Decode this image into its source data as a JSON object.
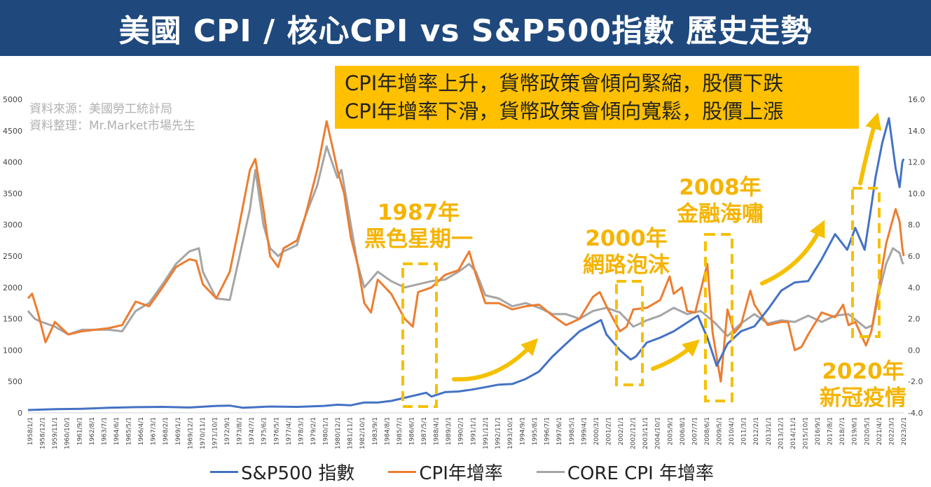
{
  "header": {
    "title": "美國 CPI / 核心CPI vs S&P500指數 歷史走勢"
  },
  "note": {
    "lines": [
      "CPI年增率上升，貨幣政策會傾向緊縮，股價下跌",
      "CPI年增率下滑，貨幣政策會傾向寬鬆，股價上漲"
    ]
  },
  "source": {
    "line1": "資料來源：美國勞工統計局",
    "line2": "資料整理：Mr.Market市場先生"
  },
  "annotations": [
    {
      "id": "a1987",
      "lines": [
        "1987年",
        "黑色星期一"
      ]
    },
    {
      "id": "a2000",
      "lines": [
        "2000年",
        "網路泡沫"
      ]
    },
    {
      "id": "a2008",
      "lines": [
        "2008年",
        "金融海嘯"
      ]
    },
    {
      "id": "a2020",
      "lines": [
        "2020年",
        "新冠疫情"
      ]
    }
  ],
  "colors": {
    "sp500": "#4472c4",
    "cpi": "#ed7d31",
    "core": "#a5a5a5",
    "highlight": "#f5c000",
    "title_bg": "#1f497d"
  },
  "chart_data": {
    "type": "line",
    "left_axis": {
      "min": 0,
      "max": 5000,
      "ticks": [
        "0",
        "500",
        "1000",
        "1500",
        "2000",
        "2500",
        "3000",
        "3500",
        "4000",
        "4500",
        "5000"
      ]
    },
    "right_axis": {
      "min": -4,
      "max": 16,
      "ticks": [
        "-4.0",
        "-2.0",
        "0.0",
        "2.0",
        "4.0",
        "6.0",
        "8.0",
        "10.0",
        "12.0",
        "14.0",
        "16.0"
      ]
    },
    "x_tick_labels": [
      "1958/1/1",
      "1958/12/1",
      "1959/11/1",
      "1960/10/1",
      "1961/9/1",
      "1962/8/1",
      "1963/7/1",
      "1964/6/1",
      "1965/5/1",
      "1966/4/1",
      "1967/3/1",
      "1968/2/1",
      "1969/1/1",
      "1969/12/1",
      "1970/11/1",
      "1971/10/1",
      "1972/9/1",
      "1973/8/1",
      "1974/7/1",
      "1975/6/1",
      "1976/5/1",
      "1977/4/1",
      "1978/3/1",
      "1979/2/1",
      "1980/1/1",
      "1980/12/1",
      "1981/11/1",
      "1982/10/1",
      "1983/9/1",
      "1984/8/1",
      "1985/7/1",
      "1986/6/1",
      "1987/5/1",
      "1988/4/1",
      "1989/3/1",
      "1990/2/1",
      "1991/1/1",
      "1991/12/1",
      "1992/11/1",
      "1993/10/1",
      "1994/9/1",
      "1995/8/1",
      "1996/7/1",
      "1997/6/1",
      "1998/5/1",
      "1999/4/1",
      "2000/3/1",
      "2001/2/1",
      "2002/1/1",
      "2002/12/1",
      "2003/11/1",
      "2004/10/1",
      "2005/9/1",
      "2006/8/1",
      "2007/7/1",
      "2008/6/1",
      "2009/5/1",
      "2010/4/1",
      "2011/3/1",
      "2012/2/1",
      "2013/1/1",
      "2013/12/1",
      "2014/11/1",
      "2015/10/1",
      "2016/9/1",
      "2017/8/1",
      "2018/7/1",
      "2019/6/1",
      "2020/5/1",
      "2021/4/1",
      "2022/3/1",
      "2023/2/1"
    ],
    "series": [
      {
        "name": "S&P500 指數",
        "axis": "left",
        "points": [
          [
            1958.0,
            45
          ],
          [
            1960,
            58
          ],
          [
            1962,
            65
          ],
          [
            1964,
            80
          ],
          [
            1966,
            90
          ],
          [
            1968,
            95
          ],
          [
            1970,
            85
          ],
          [
            1972,
            110
          ],
          [
            1973,
            115
          ],
          [
            1974,
            80
          ],
          [
            1976,
            100
          ],
          [
            1978,
            95
          ],
          [
            1980,
            110
          ],
          [
            1981,
            130
          ],
          [
            1982,
            120
          ],
          [
            1983,
            165
          ],
          [
            1984,
            165
          ],
          [
            1985,
            190
          ],
          [
            1986,
            240
          ],
          [
            1987.6,
            320
          ],
          [
            1988,
            260
          ],
          [
            1989,
            330
          ],
          [
            1990,
            340
          ],
          [
            1991,
            370
          ],
          [
            1992,
            410
          ],
          [
            1993,
            450
          ],
          [
            1994,
            460
          ],
          [
            1995,
            540
          ],
          [
            1996,
            660
          ],
          [
            1997,
            900
          ],
          [
            1998,
            1100
          ],
          [
            1999,
            1300
          ],
          [
            2000.6,
            1480
          ],
          [
            2001,
            1250
          ],
          [
            2002,
            1000
          ],
          [
            2002.8,
            850
          ],
          [
            2003.2,
            900
          ],
          [
            2004,
            1120
          ],
          [
            2005,
            1200
          ],
          [
            2006,
            1300
          ],
          [
            2007.8,
            1550
          ],
          [
            2008.5,
            1200
          ],
          [
            2009.2,
            750
          ],
          [
            2010,
            1100
          ],
          [
            2011,
            1300
          ],
          [
            2012,
            1380
          ],
          [
            2013,
            1650
          ],
          [
            2014,
            1950
          ],
          [
            2015,
            2080
          ],
          [
            2016,
            2100
          ],
          [
            2017,
            2450
          ],
          [
            2018,
            2850
          ],
          [
            2018.9,
            2600
          ],
          [
            2019.5,
            2950
          ],
          [
            2020.2,
            2600
          ],
          [
            2020.7,
            3300
          ],
          [
            2021,
            3750
          ],
          [
            2021.5,
            4300
          ],
          [
            2022,
            4700
          ],
          [
            2022.5,
            3900
          ],
          [
            2022.8,
            3600
          ],
          [
            2023.0,
            4000
          ],
          [
            2023.1,
            4050
          ]
        ]
      },
      {
        "name": "CPI年增率",
        "axis": "right",
        "points": [
          [
            1958.0,
            3.3
          ],
          [
            1958.3,
            3.6
          ],
          [
            1958.7,
            2.5
          ],
          [
            1959.3,
            0.5
          ],
          [
            1960,
            1.8
          ],
          [
            1961,
            1.0
          ],
          [
            1962,
            1.2
          ],
          [
            1963,
            1.3
          ],
          [
            1964,
            1.4
          ],
          [
            1965,
            1.6
          ],
          [
            1966,
            3.1
          ],
          [
            1967,
            2.8
          ],
          [
            1968,
            4.0
          ],
          [
            1969,
            5.3
          ],
          [
            1970,
            5.8
          ],
          [
            1970.5,
            5.7
          ],
          [
            1971,
            4.2
          ],
          [
            1972,
            3.3
          ],
          [
            1973,
            5.0
          ],
          [
            1973.6,
            7.5
          ],
          [
            1974.5,
            11.5
          ],
          [
            1974.9,
            12.2
          ],
          [
            1975.5,
            9.0
          ],
          [
            1976,
            6.0
          ],
          [
            1976.6,
            5.3
          ],
          [
            1977,
            6.5
          ],
          [
            1978,
            7.0
          ],
          [
            1978.6,
            8.5
          ],
          [
            1979.5,
            11.5
          ],
          [
            1980.2,
            14.6
          ],
          [
            1980.7,
            12.7
          ],
          [
            1981,
            11.5
          ],
          [
            1981.5,
            10.0
          ],
          [
            1982,
            7.2
          ],
          [
            1982.5,
            5.5
          ],
          [
            1983,
            3.0
          ],
          [
            1983.5,
            2.4
          ],
          [
            1984,
            4.5
          ],
          [
            1985,
            3.6
          ],
          [
            1986,
            2.0
          ],
          [
            1986.6,
            1.5
          ],
          [
            1987,
            3.7
          ],
          [
            1988,
            4.0
          ],
          [
            1989,
            4.8
          ],
          [
            1990,
            5.1
          ],
          [
            1990.8,
            6.3
          ],
          [
            1991.3,
            4.8
          ],
          [
            1992,
            3.0
          ],
          [
            1993,
            3.0
          ],
          [
            1994,
            2.6
          ],
          [
            1995,
            2.8
          ],
          [
            1996,
            2.9
          ],
          [
            1997,
            2.2
          ],
          [
            1998,
            1.6
          ],
          [
            1999,
            2.0
          ],
          [
            2000,
            3.4
          ],
          [
            2000.5,
            3.7
          ],
          [
            2001,
            2.8
          ],
          [
            2002,
            1.2
          ],
          [
            2002.5,
            1.5
          ],
          [
            2003,
            2.6
          ],
          [
            2004,
            2.7
          ],
          [
            2005,
            3.2
          ],
          [
            2005.7,
            4.7
          ],
          [
            2006,
            3.6
          ],
          [
            2006.6,
            4.0
          ],
          [
            2007,
            2.5
          ],
          [
            2007.6,
            2.4
          ],
          [
            2008.5,
            5.5
          ],
          [
            2008.9,
            1.1
          ],
          [
            2009.5,
            -2.0
          ],
          [
            2010,
            2.6
          ],
          [
            2010.5,
            1.1
          ],
          [
            2011,
            1.6
          ],
          [
            2011.7,
            3.8
          ],
          [
            2012,
            2.9
          ],
          [
            2013,
            1.6
          ],
          [
            2014,
            1.8
          ],
          [
            2014.5,
            1.8
          ],
          [
            2015,
            0.0
          ],
          [
            2015.5,
            0.2
          ],
          [
            2016,
            1.0
          ],
          [
            2017,
            2.4
          ],
          [
            2018,
            2.1
          ],
          [
            2018.6,
            2.9
          ],
          [
            2019,
            1.6
          ],
          [
            2019.5,
            1.8
          ],
          [
            2020.3,
            0.3
          ],
          [
            2020.7,
            1.2
          ],
          [
            2021.3,
            4.2
          ],
          [
            2021.8,
            6.8
          ],
          [
            2022.5,
            9.0
          ],
          [
            2022.8,
            8.2
          ],
          [
            2023.0,
            6.5
          ],
          [
            2023.1,
            6.0
          ]
        ]
      },
      {
        "name": "CORE CPI 年增率",
        "axis": "right",
        "points": [
          [
            1958.0,
            2.5
          ],
          [
            1958.5,
            2.0
          ],
          [
            1959,
            1.8
          ],
          [
            1960,
            1.5
          ],
          [
            1961,
            1.0
          ],
          [
            1962,
            1.3
          ],
          [
            1963,
            1.3
          ],
          [
            1964,
            1.3
          ],
          [
            1965,
            1.2
          ],
          [
            1966,
            2.5
          ],
          [
            1967,
            3.0
          ],
          [
            1968,
            4.2
          ],
          [
            1969,
            5.5
          ],
          [
            1970,
            6.3
          ],
          [
            1970.7,
            6.5
          ],
          [
            1971,
            5.0
          ],
          [
            1972,
            3.3
          ],
          [
            1973,
            3.2
          ],
          [
            1973.6,
            5.5
          ],
          [
            1974.5,
            9.0
          ],
          [
            1974.9,
            11.5
          ],
          [
            1975.5,
            8.0
          ],
          [
            1976,
            6.5
          ],
          [
            1976.6,
            6.0
          ],
          [
            1977,
            6.3
          ],
          [
            1978,
            6.7
          ],
          [
            1978.6,
            8.5
          ],
          [
            1979.5,
            10.5
          ],
          [
            1980.2,
            13.0
          ],
          [
            1980.6,
            12.0
          ],
          [
            1981,
            11.0
          ],
          [
            1981.3,
            11.5
          ],
          [
            1982,
            8.0
          ],
          [
            1982.5,
            5.5
          ],
          [
            1983,
            4.0
          ],
          [
            1983.5,
            4.5
          ],
          [
            1984,
            5.0
          ],
          [
            1985,
            4.4
          ],
          [
            1986,
            4.0
          ],
          [
            1987,
            4.2
          ],
          [
            1988,
            4.4
          ],
          [
            1989,
            4.5
          ],
          [
            1990,
            5.0
          ],
          [
            1990.8,
            5.5
          ],
          [
            1991.3,
            5.0
          ],
          [
            1992,
            3.5
          ],
          [
            1993,
            3.3
          ],
          [
            1994,
            2.8
          ],
          [
            1995,
            3.0
          ],
          [
            1996,
            2.7
          ],
          [
            1997,
            2.3
          ],
          [
            1998,
            2.3
          ],
          [
            1999,
            2.0
          ],
          [
            2000,
            2.5
          ],
          [
            2001,
            2.7
          ],
          [
            2002,
            2.4
          ],
          [
            2003,
            1.5
          ],
          [
            2004,
            1.9
          ],
          [
            2005,
            2.2
          ],
          [
            2006,
            2.7
          ],
          [
            2007,
            2.3
          ],
          [
            2008,
            2.5
          ],
          [
            2009,
            1.8
          ],
          [
            2010,
            0.9
          ],
          [
            2011,
            1.7
          ],
          [
            2012,
            2.3
          ],
          [
            2013,
            1.7
          ],
          [
            2014,
            1.9
          ],
          [
            2015,
            1.8
          ],
          [
            2016,
            2.2
          ],
          [
            2017,
            1.8
          ],
          [
            2018,
            2.2
          ],
          [
            2019,
            2.3
          ],
          [
            2020.3,
            1.4
          ],
          [
            2020.8,
            1.6
          ],
          [
            2021.3,
            3.8
          ],
          [
            2021.8,
            5.5
          ],
          [
            2022.3,
            6.5
          ],
          [
            2022.8,
            6.2
          ],
          [
            2023.0,
            5.6
          ],
          [
            2023.1,
            5.5
          ]
        ]
      }
    ],
    "legend": {
      "placement": "bottom"
    }
  }
}
